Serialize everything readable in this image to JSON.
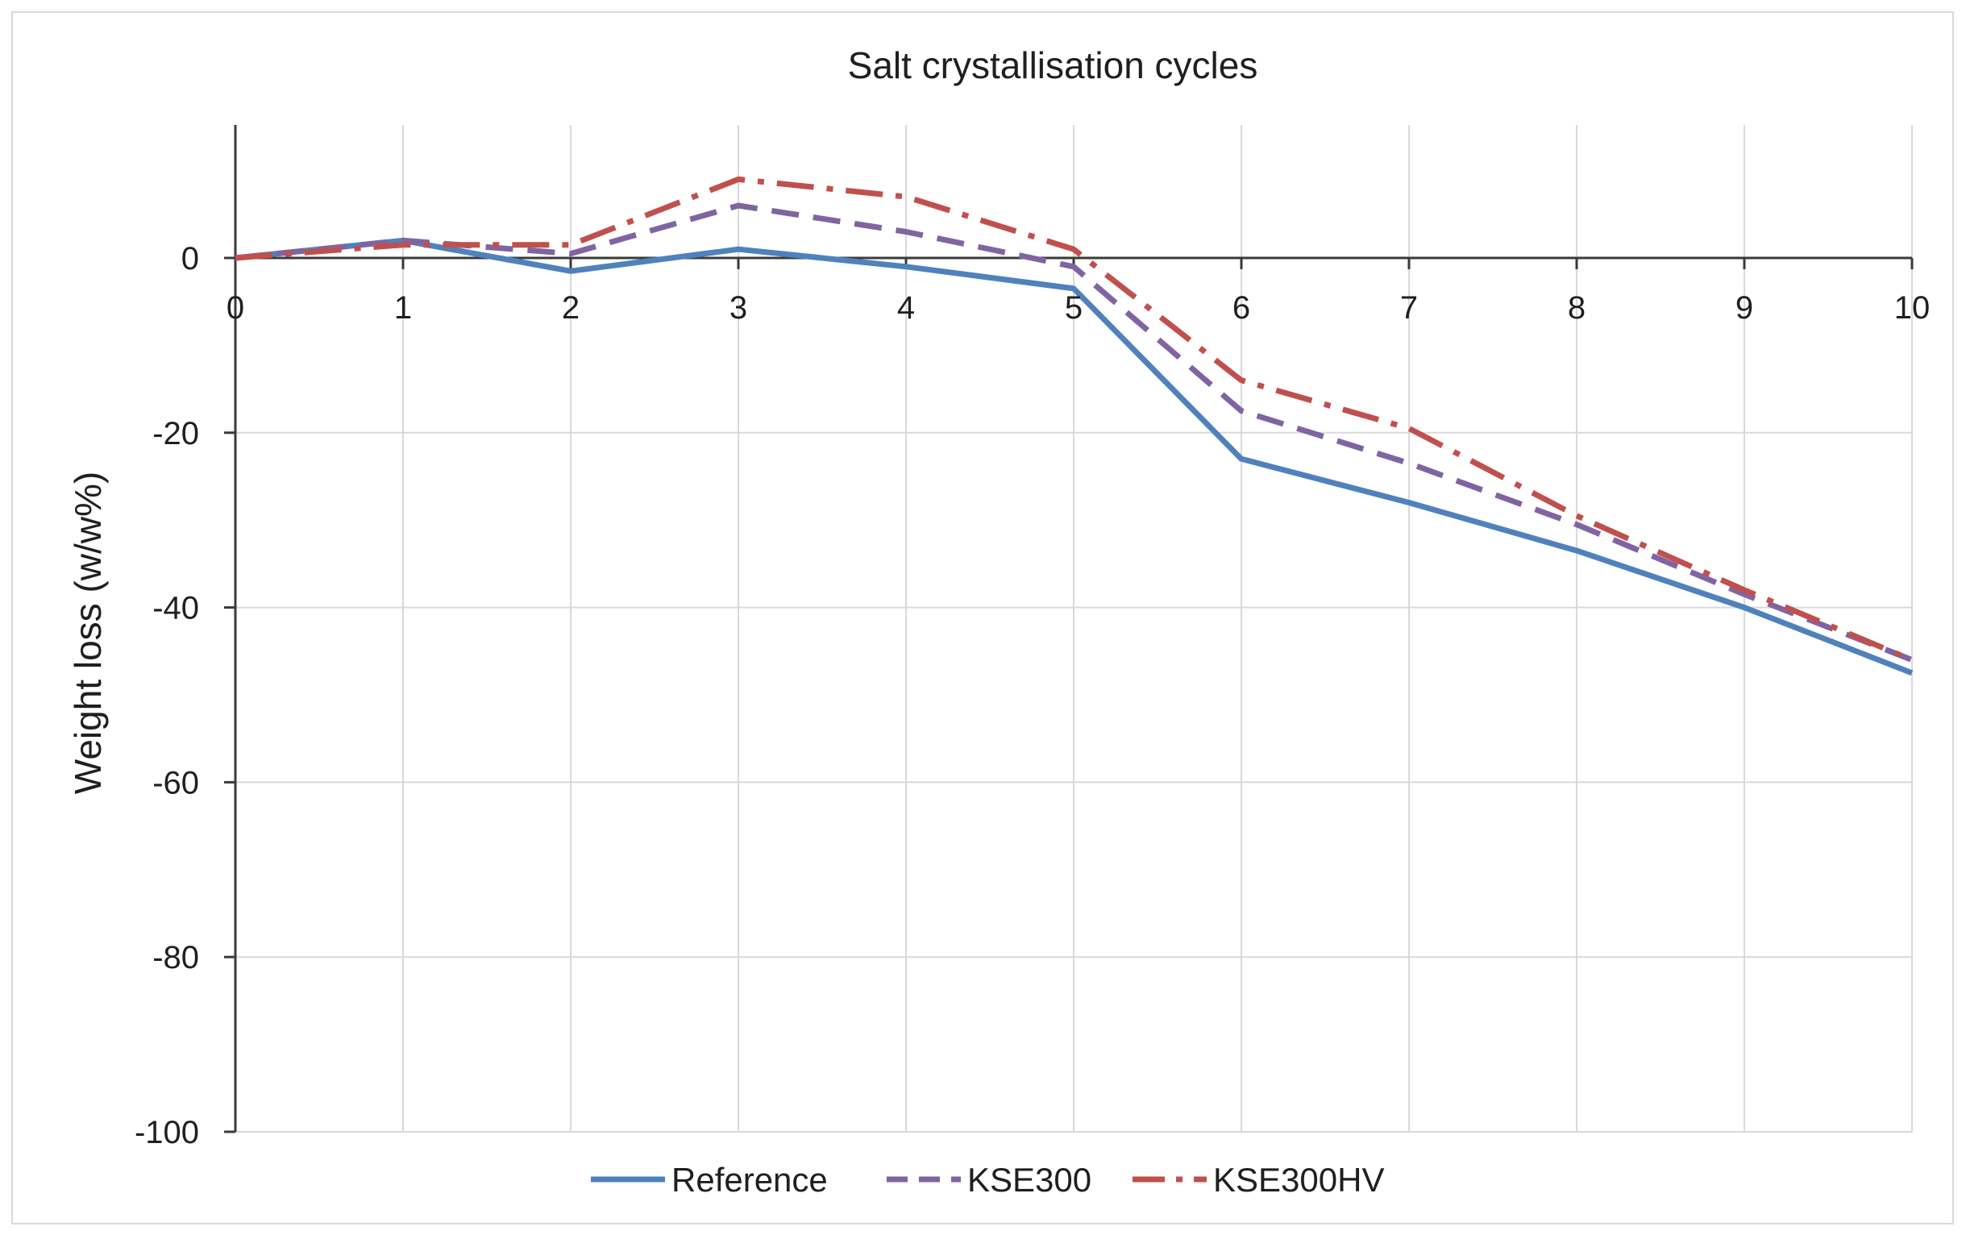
{
  "chart_data": {
    "type": "line",
    "title": "Salt crystallisation cycles",
    "xlabel": "",
    "ylabel": "Weight loss (w/w%)",
    "x": [
      0,
      1,
      2,
      3,
      4,
      5,
      6,
      7,
      8,
      9,
      10
    ],
    "x_tick_labels": [
      "0",
      "1",
      "2",
      "3",
      "4",
      "5",
      "6",
      "7",
      "8",
      "9",
      "10"
    ],
    "y_tick_labels": [
      "0",
      "-20",
      "-40",
      "-60",
      "-80",
      "-100"
    ],
    "y_ticks": [
      0,
      -20,
      -40,
      -60,
      -80,
      -100
    ],
    "xlim": [
      0,
      10
    ],
    "ylim": [
      -100,
      15
    ],
    "grid": true,
    "legend_position": "bottom",
    "series": [
      {
        "name": "Reference",
        "color": "#4f81bd",
        "style": "solid",
        "values": [
          0,
          2,
          -1.5,
          1,
          -1,
          -3.5,
          -23,
          -28,
          -33.5,
          -40,
          -47.5
        ]
      },
      {
        "name": "KSE300",
        "color": "#8064a2",
        "style": "dashed",
        "values": [
          0,
          2,
          0.5,
          6,
          3,
          -1,
          -17.5,
          -23.5,
          -30.5,
          -38.5,
          -46
        ]
      },
      {
        "name": "KSE300HV",
        "color": "#c0504d",
        "style": "dash-dot",
        "values": [
          0,
          1.5,
          1.5,
          9,
          7,
          1,
          -14,
          -19.5,
          -29.5,
          -38,
          -46
        ]
      }
    ]
  }
}
